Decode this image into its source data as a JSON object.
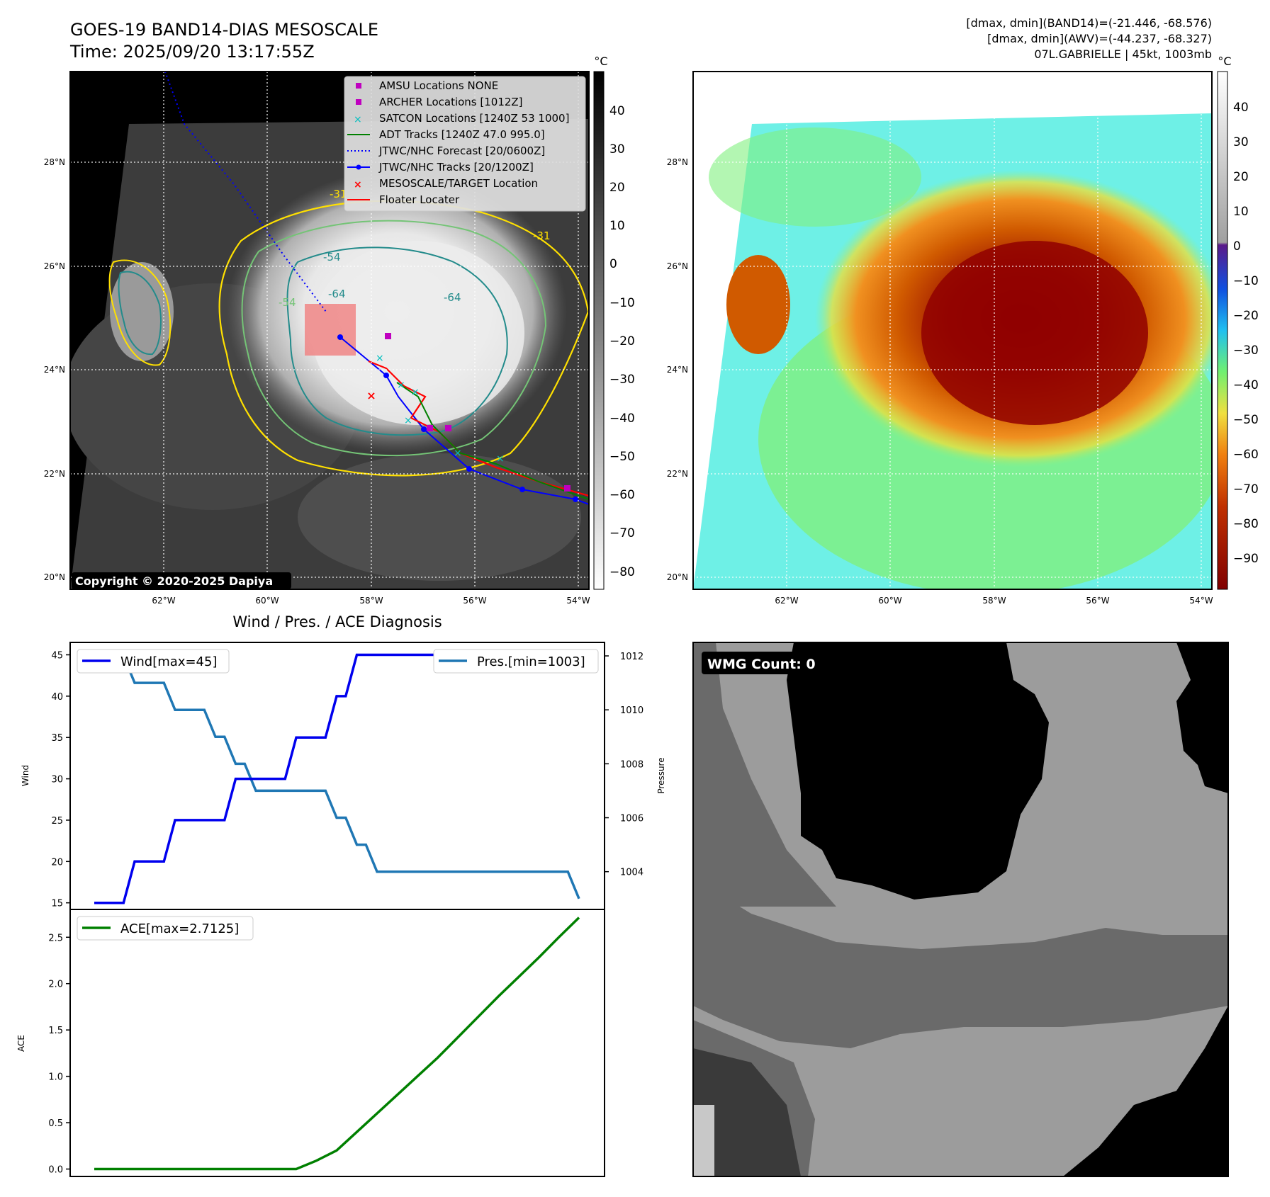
{
  "header": {
    "title_line1": "GOES-19 BAND14-DIAS MESOSCALE",
    "title_line2": "Time: 2025/09/20 13:17:55Z",
    "info_line1": "[dmax, dmin](BAND14)=(-21.446, -68.576)",
    "info_line2": "[dmax, dmin](AWV)=(-44.237, -68.327)",
    "info_line3": "07L.GABRIELLE | 45kt, 1003mb"
  },
  "colors": {
    "wind": "#0000ee",
    "pressure": "#1f77b4",
    "ace": "#008000",
    "adt": "#008000",
    "jtwc_forecast": "#0000ff",
    "jtwc_track": "#0000ff",
    "floater": "#ff0000",
    "archer": "#bf00bf",
    "satcon": "#00bfbf",
    "contour_warm": "#ffe000",
    "contour_mid": "#74c476",
    "contour_cold": "#238b8b"
  },
  "map_ir": {
    "unit": "°C",
    "colorbar_ticks": [
      "40",
      "30",
      "20",
      "10",
      "0",
      "−10",
      "−20",
      "−30",
      "−40",
      "−50",
      "−60",
      "−70",
      "−80"
    ],
    "lat_labels": [
      "28°N",
      "26°N",
      "24°N",
      "22°N",
      "20°N"
    ],
    "lon_labels": [
      "62°W",
      "60°W",
      "58°W",
      "56°W",
      "54°W"
    ],
    "contour_labels": [
      "-31",
      "-54",
      "-64",
      "-64",
      "-31",
      "-54"
    ],
    "copyright": "Copyright © 2020-2025 Dapiya",
    "legend": [
      {
        "label": "AMSU Locations NONE",
        "icon": "square-marker"
      },
      {
        "label": "ARCHER Locations [1012Z]",
        "icon": "square-marker"
      },
      {
        "label": "SATCON Locations [1240Z 53 1000]",
        "icon": "x-marker"
      },
      {
        "label": "ADT Tracks [1240Z 47.0 995.0]",
        "icon": "solid-line"
      },
      {
        "label": "JTWC/NHC Forecast [20/0600Z]",
        "icon": "dotted-line"
      },
      {
        "label": "JTWC/NHC Tracks [20/1200Z]",
        "icon": "line-dot"
      },
      {
        "label": "MESOSCALE/TARGET Location",
        "icon": "x-marker"
      },
      {
        "label": "Floater Locater",
        "icon": "solid-line"
      }
    ]
  },
  "map_awv": {
    "unit": "°C",
    "colorbar_ticks": [
      "40",
      "30",
      "20",
      "10",
      "0",
      "−10",
      "−20",
      "−30",
      "−40",
      "−50",
      "−60",
      "−70",
      "−80",
      "−90"
    ],
    "lat_labels": [
      "28°N",
      "26°N",
      "24°N",
      "22°N",
      "20°N"
    ],
    "lon_labels": [
      "62°W",
      "60°W",
      "58°W",
      "56°W",
      "54°W"
    ]
  },
  "wmg": {
    "label": "WMG Count: 0"
  },
  "chart_data": [
    {
      "type": "line",
      "title": "Wind / Pres. / ACE Diagnosis",
      "ylabel": "Wind",
      "y2label": "Pressure",
      "ylim": [
        14.2,
        46.5
      ],
      "y2lim": [
        1002.6,
        1012.5
      ],
      "yticks": [
        15,
        20,
        25,
        30,
        35,
        40,
        45
      ],
      "y2ticks": [
        1004,
        1006,
        1008,
        1010,
        1012
      ],
      "x": [
        0,
        1,
        2,
        3,
        4,
        5,
        6,
        7,
        8,
        9,
        10,
        11,
        12,
        13,
        14,
        15,
        16,
        17,
        18,
        19,
        20,
        21,
        22,
        23,
        24
      ],
      "series": [
        {
          "name": "Wind[max=45]",
          "values": [
            15,
            15,
            20,
            20,
            25,
            25,
            25,
            30,
            30,
            30,
            35,
            35,
            40,
            45,
            45,
            45,
            45,
            45,
            45,
            45,
            45,
            45,
            45,
            45,
            45
          ]
        },
        {
          "name": "Pres.[min=1003]",
          "values": [
            1012,
            1012,
            1011,
            1011,
            1010,
            1010,
            1009,
            1008,
            1007,
            1007,
            1007,
            1007,
            1006,
            1005,
            1004,
            1004,
            1004,
            1004,
            1004,
            1004,
            1004,
            1004,
            1004,
            1004,
            1003
          ]
        }
      ]
    },
    {
      "type": "line",
      "ylabel": "ACE",
      "ylim": [
        -0.08,
        2.8
      ],
      "yticks": [
        "0.0",
        "0.5",
        "1.0",
        "1.5",
        "2.0",
        "2.5"
      ],
      "x": [
        0,
        1,
        2,
        3,
        4,
        5,
        6,
        7,
        8,
        9,
        10,
        11,
        12,
        13,
        14,
        15,
        16,
        17,
        18,
        19,
        20,
        21,
        22,
        23,
        24
      ],
      "series": [
        {
          "name": "ACE[max=2.7125]",
          "values": [
            0,
            0,
            0,
            0,
            0,
            0,
            0,
            0,
            0,
            0,
            0,
            0.09,
            0.2,
            0.4,
            0.6,
            0.8,
            1.0,
            1.2,
            1.42,
            1.64,
            1.86,
            2.07,
            2.28,
            2.5,
            2.7125
          ]
        }
      ]
    }
  ]
}
